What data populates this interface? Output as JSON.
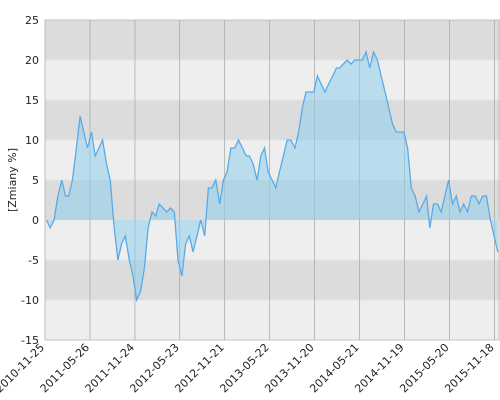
{
  "chart_data": {
    "type": "area",
    "ylabel": "[Zmiany %]",
    "x": [
      "2010-12-01",
      "2010-12-16",
      "2011-01-01",
      "2011-01-16",
      "2011-02-01",
      "2011-02-16",
      "2011-03-01",
      "2011-03-16",
      "2011-04-01",
      "2011-04-16",
      "2011-05-01",
      "2011-05-16",
      "2011-06-01",
      "2011-06-16",
      "2011-07-01",
      "2011-07-16",
      "2011-08-01",
      "2011-08-16",
      "2011-09-01",
      "2011-09-16",
      "2011-10-01",
      "2011-10-16",
      "2011-11-01",
      "2011-11-16",
      "2011-12-01",
      "2011-12-16",
      "2012-01-01",
      "2012-01-16",
      "2012-02-01",
      "2012-02-16",
      "2012-03-01",
      "2012-03-16",
      "2012-04-01",
      "2012-04-16",
      "2012-05-01",
      "2012-05-16",
      "2012-06-01",
      "2012-06-16",
      "2012-07-01",
      "2012-07-16",
      "2012-08-01",
      "2012-08-16",
      "2012-09-01",
      "2012-09-16",
      "2012-10-01",
      "2012-10-16",
      "2012-11-01",
      "2012-11-16",
      "2012-12-01",
      "2012-12-16",
      "2013-01-01",
      "2013-01-16",
      "2013-02-01",
      "2013-02-16",
      "2013-03-01",
      "2013-03-16",
      "2013-04-01",
      "2013-04-16",
      "2013-05-01",
      "2013-05-16",
      "2013-06-01",
      "2013-06-16",
      "2013-07-01",
      "2013-07-16",
      "2013-08-01",
      "2013-08-16",
      "2013-09-01",
      "2013-09-16",
      "2013-10-01",
      "2013-10-16",
      "2013-11-01",
      "2013-11-16",
      "2013-12-01",
      "2013-12-16",
      "2014-01-01",
      "2014-01-16",
      "2014-02-01",
      "2014-02-16",
      "2014-03-01",
      "2014-03-16",
      "2014-04-01",
      "2014-04-16",
      "2014-05-01",
      "2014-05-16",
      "2014-06-01",
      "2014-06-16",
      "2014-07-01",
      "2014-07-16",
      "2014-08-01",
      "2014-08-16",
      "2014-09-01",
      "2014-09-16",
      "2014-10-01",
      "2014-10-16",
      "2014-11-01",
      "2014-11-16",
      "2014-12-01",
      "2014-12-16",
      "2015-01-01",
      "2015-01-16",
      "2015-02-01",
      "2015-02-16",
      "2015-03-01",
      "2015-03-16",
      "2015-04-01",
      "2015-04-16",
      "2015-05-01",
      "2015-05-16",
      "2015-06-01",
      "2015-06-16",
      "2015-07-01",
      "2015-07-16",
      "2015-08-01",
      "2015-08-16",
      "2015-09-01",
      "2015-09-16",
      "2015-10-01",
      "2015-10-16",
      "2015-11-01",
      "2015-11-16",
      "2015-12-01"
    ],
    "values": [
      0,
      -1,
      0,
      3,
      5,
      3,
      3,
      5,
      9,
      13,
      11,
      9,
      11,
      8,
      9,
      10,
      7,
      5,
      -1,
      -5,
      -3,
      -2,
      -5,
      -7,
      -10,
      -9,
      -6,
      -1,
      1,
      0.5,
      2,
      1.5,
      1,
      1.5,
      1,
      -5,
      -7,
      -3,
      -2,
      -4,
      -2,
      0,
      -2,
      4,
      4,
      5,
      2,
      5,
      6,
      9,
      9,
      10,
      9,
      8,
      8,
      7,
      5,
      8,
      9,
      6,
      5,
      4,
      6,
      8,
      10,
      10,
      9,
      11,
      14,
      16,
      16,
      16,
      18,
      17,
      16,
      17,
      18,
      19,
      19,
      19.5,
      20,
      19.5,
      20,
      20,
      20,
      21,
      19,
      21,
      20,
      18,
      16,
      14,
      12,
      11,
      11,
      11,
      9,
      4,
      3,
      1,
      2,
      3,
      -1,
      2,
      2,
      1,
      3,
      5,
      2,
      3,
      1,
      2,
      1,
      3,
      3,
      2,
      3,
      3,
      0,
      -2,
      -4
    ],
    "color": "#5aaae8",
    "xlim": [
      "2010-11-25",
      "2015-12-10"
    ],
    "xticks": [
      "2010-11-25",
      "2011-05-26",
      "2011-11-24",
      "2012-05-23",
      "2012-11-21",
      "2013-05-22",
      "2013-11-20",
      "2014-05-21",
      "2014-11-19",
      "2015-05-20",
      "2015-11-18"
    ],
    "ylim": [
      -15,
      25
    ],
    "yticks": [
      -15,
      -10,
      -5,
      0,
      5,
      10,
      15,
      20,
      25
    ],
    "grid": true
  }
}
